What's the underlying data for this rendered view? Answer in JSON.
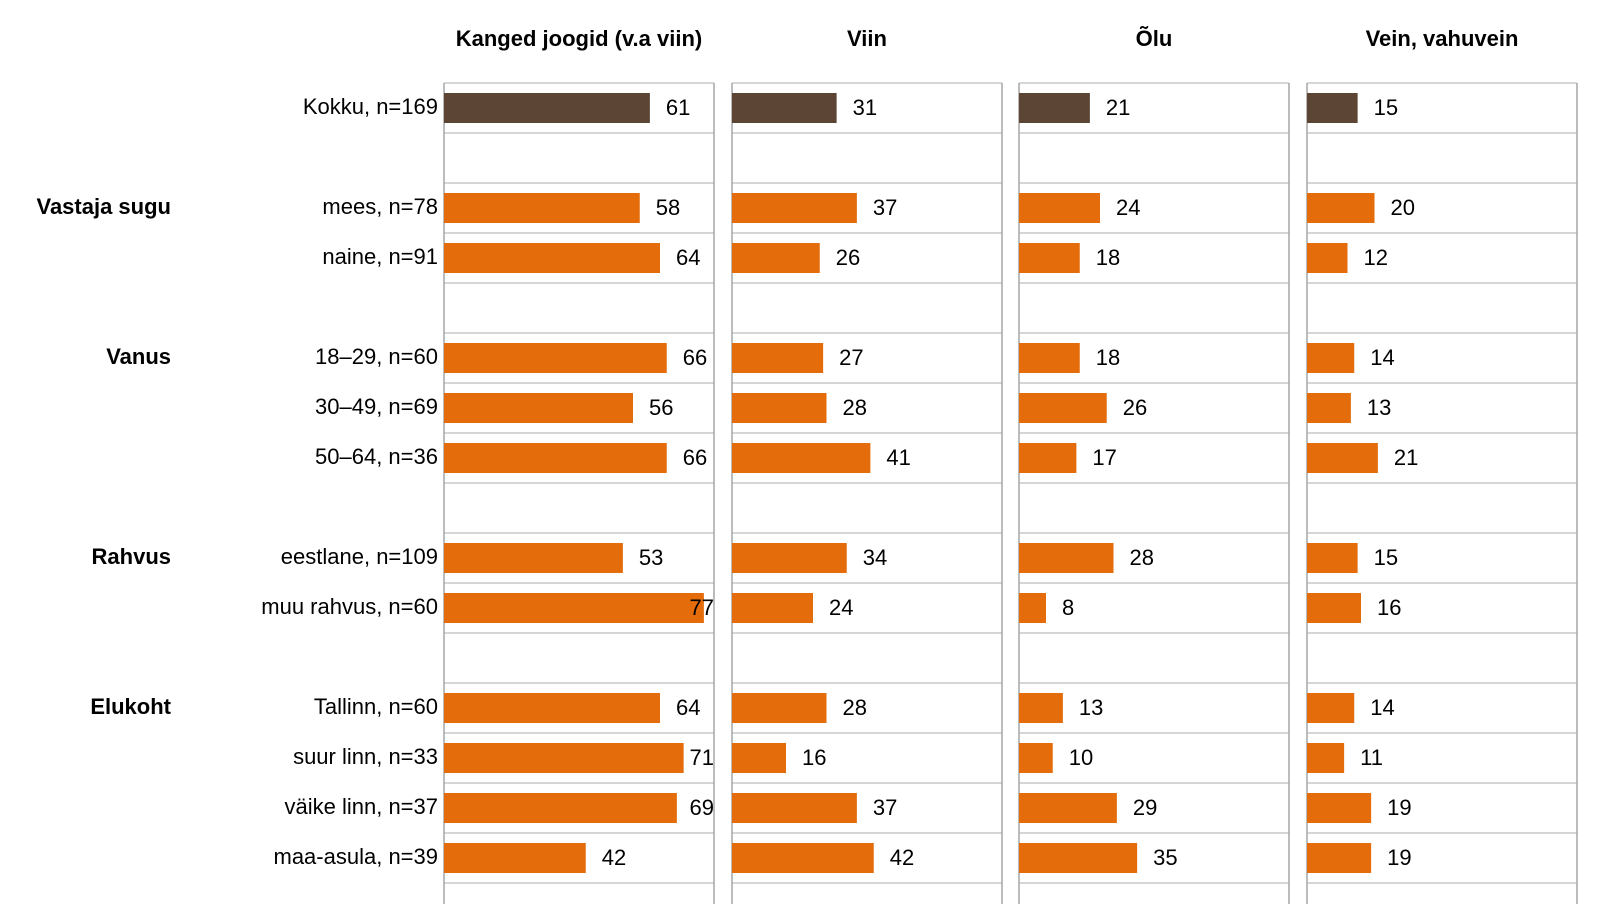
{
  "chart_data": {
    "type": "bar",
    "orientation": "horizontal",
    "categories": [
      "Kokku, n=169",
      null,
      "mees, n=78",
      "naine, n=91",
      null,
      "18–29, n=60",
      "30–49, n=69",
      "50–64, n=36",
      null,
      "eestlane, n=109",
      "muu rahvus, n=60",
      null,
      "Tallinn, n=60",
      "suur linn, n=33",
      "väike linn, n=37",
      "maa-asula, n=39"
    ],
    "colors": [
      "#5c4535",
      null,
      "#e46c0a",
      "#e46c0a",
      null,
      "#e46c0a",
      "#e46c0a",
      "#e46c0a",
      null,
      "#e46c0a",
      "#e46c0a",
      null,
      "#e46c0a",
      "#e46c0a",
      "#e46c0a",
      "#e46c0a"
    ],
    "groups": [
      {
        "label": "Vastaja sugu",
        "start": 2
      },
      {
        "label": "Vanus",
        "start": 5
      },
      {
        "label": "Rahvus",
        "start": 9
      },
      {
        "label": "Elukoht",
        "start": 12
      }
    ],
    "xlim": [
      0,
      80
    ],
    "series": [
      {
        "name": "Kanged joogid (v.a viin)",
        "values": [
          61,
          null,
          58,
          64,
          null,
          66,
          56,
          66,
          null,
          53,
          77,
          null,
          64,
          71,
          69,
          42
        ]
      },
      {
        "name": "Viin",
        "values": [
          31,
          null,
          37,
          26,
          null,
          27,
          28,
          41,
          null,
          34,
          24,
          null,
          28,
          16,
          37,
          42
        ]
      },
      {
        "name": "Õlu",
        "values": [
          21,
          null,
          24,
          18,
          null,
          18,
          26,
          17,
          null,
          28,
          8,
          null,
          13,
          10,
          29,
          35
        ]
      },
      {
        "name": "Vein, vahuvein",
        "values": [
          15,
          null,
          20,
          12,
          null,
          14,
          13,
          21,
          null,
          15,
          16,
          null,
          14,
          11,
          19,
          19
        ]
      }
    ]
  }
}
